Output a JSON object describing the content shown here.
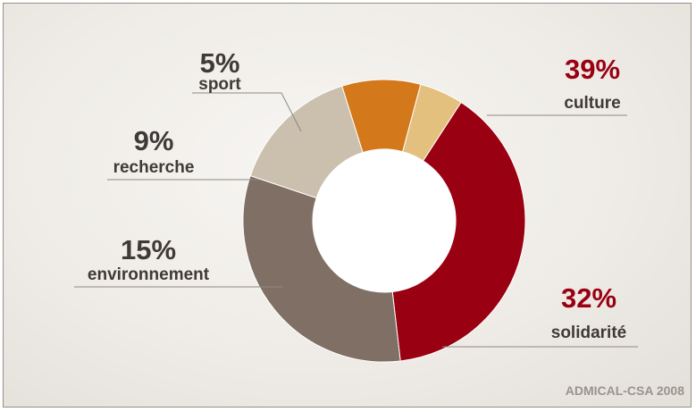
{
  "chart_data": {
    "type": "pie",
    "variant": "donut",
    "slices": [
      {
        "label": "culture",
        "value": 39,
        "value_label": "39%",
        "color": "#990012"
      },
      {
        "label": "solidarité",
        "value": 32,
        "value_label": "32%",
        "color": "#7f6f64"
      },
      {
        "label": "environnement",
        "value": 15,
        "value_label": "15%",
        "color": "#cbbfae"
      },
      {
        "label": "recherche",
        "value": 9,
        "value_label": "9%",
        "color": "#d4781c"
      },
      {
        "label": "sport",
        "value": 5,
        "value_label": "5%",
        "color": "#e3c07d"
      }
    ],
    "highlight_label_color": "#990012",
    "default_label_color": "#3f3a37",
    "source": "ADMICAL-CSA 2008"
  }
}
